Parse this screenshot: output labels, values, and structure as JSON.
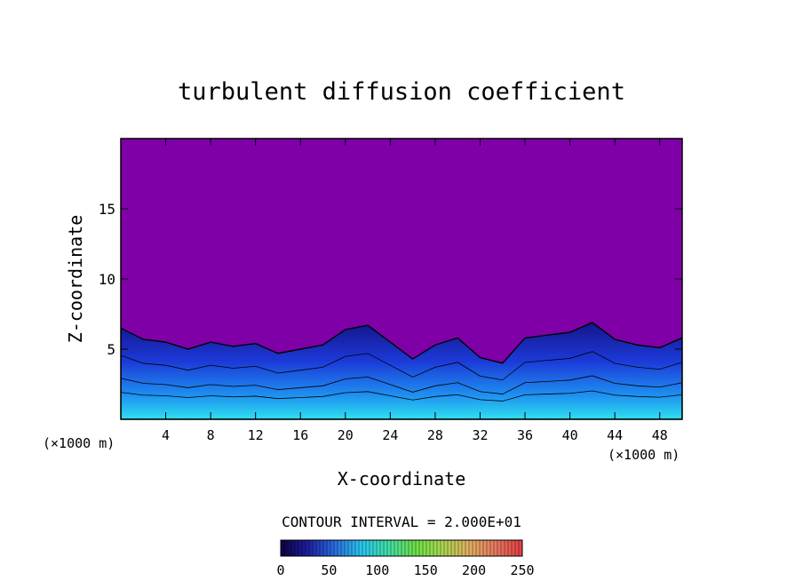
{
  "chart_data": {
    "type": "heatmap",
    "title": "turbulent diffusion coefficient",
    "xlabel": "X-coordinate",
    "ylabel": "Z-coordinate",
    "x_unit_left": "(×1000 m)",
    "x_unit_right": "(×1000 m)",
    "xlim": [
      0,
      50
    ],
    "ylim": [
      0,
      20
    ],
    "x_ticks": [
      4,
      8,
      12,
      16,
      20,
      24,
      28,
      32,
      36,
      40,
      44,
      48
    ],
    "y_ticks": [
      5,
      10,
      15
    ],
    "grid": false,
    "background_value_color": "#8000a8",
    "contour_interval_label": "CONTOUR INTERVAL = 2.000E+01",
    "colorbar": {
      "min": 0,
      "max": 250,
      "tick_labels": [
        "0",
        "50",
        "100",
        "150",
        "200",
        "250"
      ],
      "colors": [
        "#0d0040",
        "#1e1ea0",
        "#2a6ae0",
        "#27c8f0",
        "#3fe0a8",
        "#6de04a",
        "#a8d850",
        "#e0b060",
        "#e87860",
        "#e04040"
      ]
    },
    "turbulent_layer": {
      "description_free": true,
      "top_profile_x": [
        0,
        2,
        4,
        6,
        8,
        10,
        12,
        14,
        16,
        18,
        20,
        22,
        24,
        26,
        28,
        30,
        32,
        34,
        36,
        38,
        40,
        42,
        44,
        46,
        48,
        50
      ],
      "top_profile_z": [
        6.5,
        5.7,
        5.5,
        5.0,
        5.5,
        5.2,
        5.4,
        4.7,
        5.0,
        5.3,
        6.4,
        6.7,
        5.5,
        4.3,
        5.3,
        5.8,
        4.4,
        4.0,
        5.8,
        6.0,
        6.2,
        6.9,
        5.7,
        5.3,
        5.1,
        5.8
      ]
    }
  }
}
